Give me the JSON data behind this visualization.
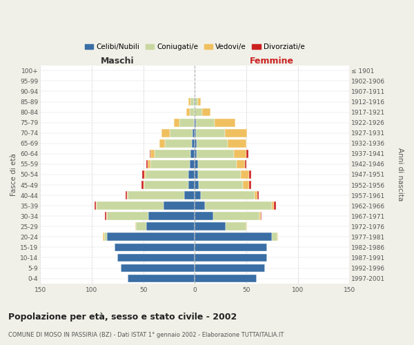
{
  "age_groups": [
    "0-4",
    "5-9",
    "10-14",
    "15-19",
    "20-24",
    "25-29",
    "30-34",
    "35-39",
    "40-44",
    "45-49",
    "50-54",
    "55-59",
    "60-64",
    "65-69",
    "70-74",
    "75-79",
    "80-84",
    "85-89",
    "90-94",
    "95-99",
    "100+"
  ],
  "birth_years": [
    "1997-2001",
    "1992-1996",
    "1987-1991",
    "1982-1986",
    "1977-1981",
    "1972-1976",
    "1967-1971",
    "1962-1966",
    "1957-1961",
    "1952-1956",
    "1947-1951",
    "1942-1946",
    "1937-1941",
    "1932-1936",
    "1927-1931",
    "1922-1926",
    "1917-1921",
    "1912-1916",
    "1907-1911",
    "1902-1906",
    "≤ 1901"
  ],
  "male_celibi": [
    65,
    72,
    75,
    78,
    85,
    47,
    45,
    30,
    10,
    6,
    6,
    5,
    4,
    3,
    2,
    1,
    0,
    1,
    0,
    0,
    0
  ],
  "male_coniugati": [
    0,
    0,
    0,
    0,
    3,
    10,
    40,
    65,
    55,
    43,
    42,
    38,
    35,
    26,
    22,
    14,
    5,
    3,
    0,
    0,
    0
  ],
  "male_vedovi": [
    0,
    0,
    0,
    0,
    1,
    1,
    1,
    1,
    1,
    1,
    1,
    3,
    4,
    5,
    8,
    5,
    3,
    2,
    0,
    0,
    0
  ],
  "male_divorziati": [
    0,
    0,
    0,
    0,
    0,
    0,
    1,
    1,
    1,
    2,
    2,
    1,
    1,
    0,
    0,
    0,
    0,
    0,
    0,
    0,
    0
  ],
  "female_nubili": [
    60,
    68,
    70,
    70,
    75,
    30,
    18,
    10,
    6,
    4,
    3,
    3,
    2,
    2,
    1,
    1,
    0,
    0,
    0,
    0,
    0
  ],
  "female_coniugate": [
    0,
    0,
    0,
    0,
    5,
    20,
    45,
    65,
    52,
    43,
    42,
    38,
    36,
    30,
    28,
    18,
    7,
    3,
    0,
    0,
    0
  ],
  "female_vedove": [
    0,
    0,
    0,
    0,
    1,
    1,
    1,
    2,
    3,
    6,
    8,
    8,
    12,
    18,
    22,
    20,
    8,
    3,
    0,
    0,
    0
  ],
  "female_divorziate": [
    0,
    0,
    0,
    0,
    0,
    0,
    1,
    2,
    1,
    2,
    2,
    1,
    2,
    0,
    0,
    0,
    0,
    0,
    0,
    0,
    0
  ],
  "colors": {
    "celibi": "#3a6ea5",
    "coniugati": "#c8d8a0",
    "vedovi": "#f0c060",
    "divorziati": "#cc2020"
  },
  "xlim": 150,
  "title": "Popolazione per età, sesso e stato civile - 2002",
  "subtitle": "COMUNE DI MOSO IN PASSIRIA (BZ) - Dati ISTAT 1° gennaio 2002 - Elaborazione TUTTAITALIA.IT",
  "label_maschi": "Maschi",
  "label_femmine": "Femmine",
  "ylabel_left": "Fasce di età",
  "ylabel_right": "Anni di nascita",
  "bg_color": "#f0f0e8",
  "plot_bg_color": "#ffffff",
  "legend": [
    "Celibi/Nubili",
    "Coniugati/e",
    "Vedovi/e",
    "Divorziati/e"
  ]
}
